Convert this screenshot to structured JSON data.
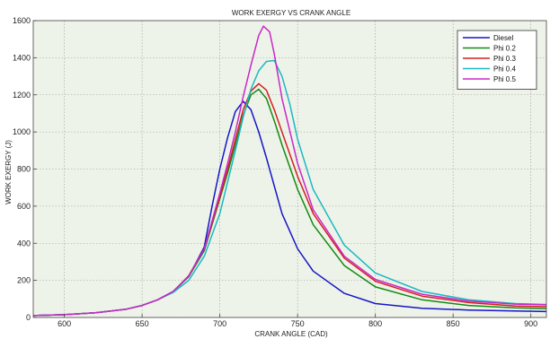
{
  "chart_data": {
    "type": "line",
    "title": "WORK EXERGY VS CRANK ANGLE",
    "xlabel": "CRANK ANGLE (CAD)",
    "ylabel": "WORK EXERGY (J)",
    "xlim": [
      580,
      910
    ],
    "ylim": [
      0,
      1600
    ],
    "xticks": [
      600,
      650,
      700,
      750,
      800,
      850,
      900
    ],
    "yticks": [
      0,
      200,
      400,
      600,
      800,
      1000,
      1200,
      1400,
      1600
    ],
    "grid": true,
    "legend_position": "top-right",
    "background_color": "#eef3e9",
    "series": [
      {
        "name": "Diesel",
        "color": "#1515c8",
        "x": [
          580,
          600,
          620,
          640,
          650,
          660,
          670,
          680,
          690,
          695,
          700,
          705,
          710,
          715,
          720,
          725,
          730,
          740,
          750,
          760,
          780,
          800,
          830,
          860,
          890,
          910
        ],
        "y": [
          10,
          15,
          25,
          45,
          65,
          95,
          140,
          220,
          380,
          600,
          800,
          970,
          1110,
          1165,
          1120,
          1000,
          860,
          560,
          370,
          250,
          130,
          75,
          50,
          40,
          35,
          32
        ]
      },
      {
        "name": "Phi 0.2",
        "color": "#138a13",
        "x": [
          580,
          600,
          620,
          640,
          650,
          660,
          670,
          680,
          690,
          700,
          705,
          710,
          715,
          720,
          725,
          730,
          735,
          740,
          750,
          760,
          780,
          800,
          830,
          860,
          890,
          910
        ],
        "y": [
          10,
          15,
          25,
          45,
          65,
          95,
          140,
          220,
          360,
          640,
          780,
          930,
          1090,
          1200,
          1230,
          1180,
          1060,
          930,
          690,
          500,
          280,
          165,
          95,
          65,
          52,
          48
        ]
      },
      {
        "name": "Phi 0.3",
        "color": "#d42020",
        "x": [
          580,
          600,
          620,
          640,
          650,
          660,
          670,
          680,
          690,
          700,
          705,
          710,
          715,
          720,
          725,
          730,
          735,
          740,
          750,
          760,
          780,
          800,
          830,
          860,
          890,
          910
        ],
        "y": [
          10,
          15,
          25,
          45,
          65,
          95,
          140,
          225,
          370,
          650,
          800,
          960,
          1120,
          1220,
          1260,
          1225,
          1120,
          1000,
          760,
          560,
          320,
          195,
          115,
          80,
          62,
          58
        ]
      },
      {
        "name": "Phi 0.4",
        "color": "#1cb8c4",
        "x": [
          580,
          600,
          620,
          640,
          650,
          660,
          670,
          680,
          690,
          700,
          710,
          715,
          720,
          725,
          730,
          735,
          740,
          745,
          750,
          760,
          780,
          800,
          830,
          860,
          890,
          910
        ],
        "y": [
          10,
          15,
          25,
          45,
          65,
          95,
          135,
          200,
          330,
          560,
          900,
          1080,
          1230,
          1330,
          1380,
          1385,
          1300,
          1150,
          960,
          690,
          390,
          240,
          140,
          95,
          75,
          70
        ]
      },
      {
        "name": "Phi 0.5",
        "color": "#c828c8",
        "x": [
          580,
          600,
          620,
          640,
          650,
          660,
          670,
          680,
          690,
          700,
          705,
          710,
          715,
          720,
          725,
          728,
          732,
          735,
          740,
          750,
          760,
          780,
          800,
          830,
          860,
          890,
          910
        ],
        "y": [
          10,
          15,
          25,
          45,
          65,
          95,
          140,
          225,
          370,
          670,
          830,
          1000,
          1190,
          1360,
          1520,
          1570,
          1540,
          1420,
          1180,
          830,
          580,
          330,
          205,
          125,
          88,
          72,
          68
        ]
      }
    ]
  }
}
